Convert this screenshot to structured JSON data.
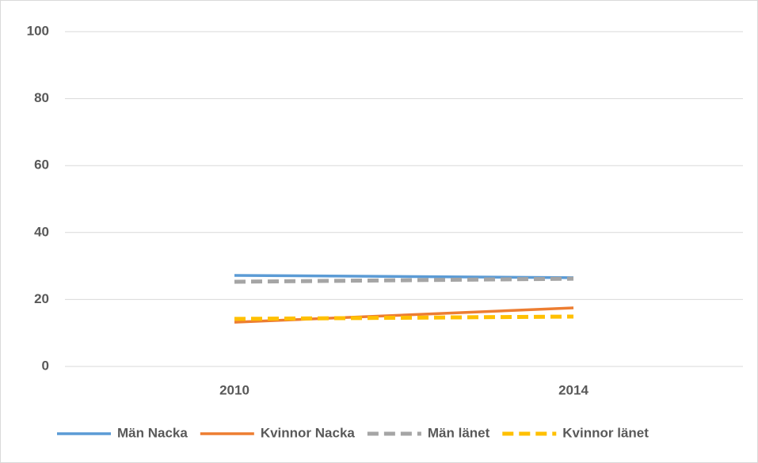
{
  "chart_data": {
    "type": "line",
    "categories": [
      "2010",
      "2014"
    ],
    "series": [
      {
        "name": "Män Nacka",
        "color": "#5b9bd5",
        "dashed": false,
        "values": [
          27.2,
          26.5
        ]
      },
      {
        "name": "Kvinnor Nacka",
        "color": "#ed7d31",
        "dashed": false,
        "values": [
          13.2,
          17.5
        ]
      },
      {
        "name": "Män länet",
        "color": "#a5a5a5",
        "dashed": true,
        "values": [
          25.3,
          26.2
        ]
      },
      {
        "name": "Kvinnor länet",
        "color": "#ffc000",
        "dashed": true,
        "values": [
          14.2,
          14.9
        ]
      }
    ],
    "ylim": [
      0,
      100
    ],
    "yticks": [
      0,
      20,
      40,
      60,
      80,
      100
    ],
    "grid": true,
    "legend": "bottom"
  }
}
